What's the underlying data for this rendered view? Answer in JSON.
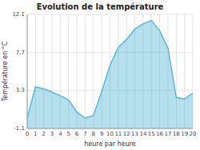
{
  "chart_data": {
    "type": "area",
    "title": "Evolution de la température",
    "xlabel": "heure par heure",
    "ylabel": "Température en °C",
    "x": [
      0,
      1,
      2,
      3,
      4,
      5,
      6,
      7,
      8,
      9,
      10,
      11,
      12,
      13,
      14,
      15,
      16,
      17,
      18,
      19,
      20
    ],
    "values": [
      0.1,
      3.7,
      3.5,
      3.1,
      2.7,
      2.2,
      0.8,
      0.1,
      0.4,
      3.2,
      6.2,
      8.3,
      9.2,
      10.4,
      11.0,
      11.4,
      10.2,
      8.2,
      2.5,
      2.3,
      3.0
    ],
    "color": "#5bb8d4",
    "xlim": [
      0,
      20
    ],
    "xticks": [
      0,
      1,
      2,
      3,
      4,
      5,
      6,
      7,
      8,
      9,
      10,
      11,
      12,
      13,
      14,
      15,
      16,
      17,
      18,
      19,
      20
    ],
    "ylim": [
      -1.1,
      12.1
    ],
    "yticks": [
      -1.1,
      3.3,
      7.7,
      12.1
    ],
    "grid": true
  }
}
